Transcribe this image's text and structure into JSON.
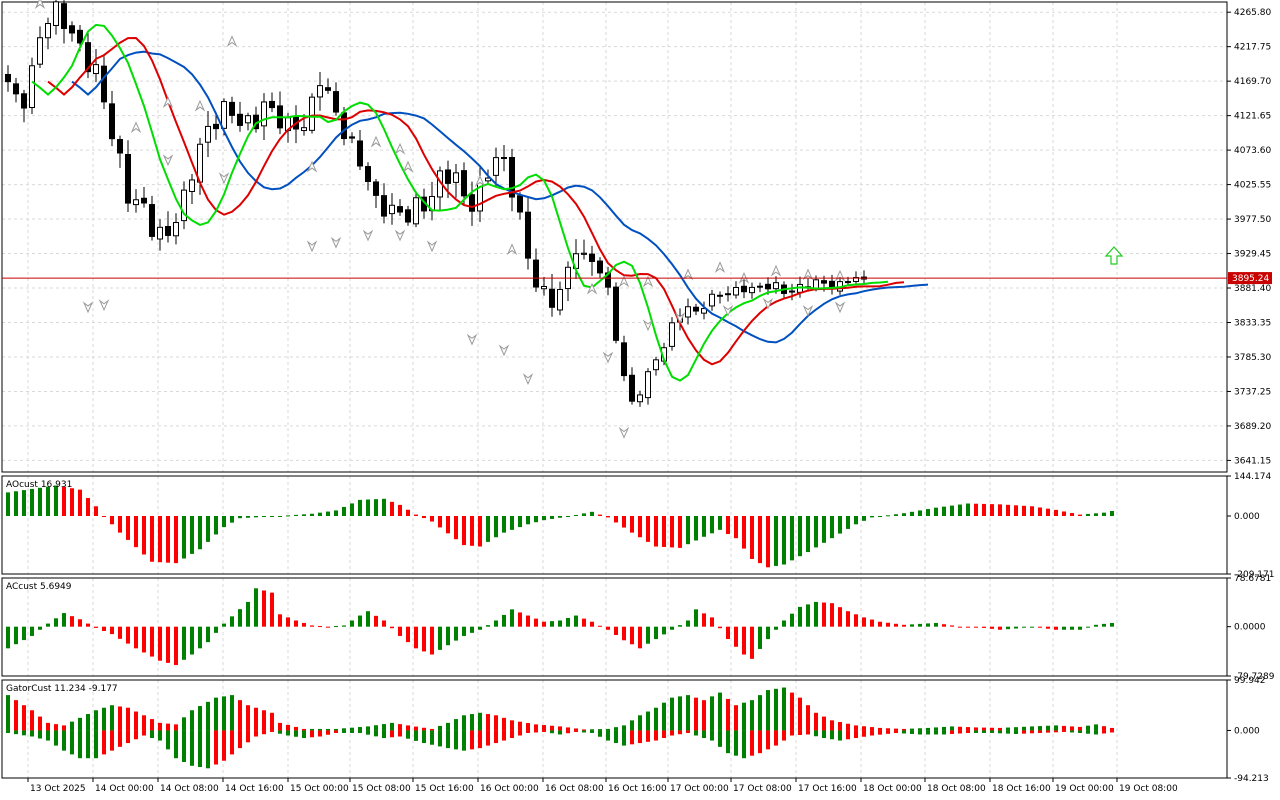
{
  "colors": {
    "background": "#ffffff",
    "grid": "#d9d9d9",
    "frame": "#000000",
    "up_histogram": "#008000",
    "down_histogram": "#ff0000",
    "alligator_lips": "#00dd00",
    "alligator_teeth": "#dd0000",
    "alligator_jaw": "#0050c0",
    "price_line": "#c80000",
    "signal_arrow": "#22cc22",
    "fractal": "#9a9a9a"
  },
  "chart_data": [
    {
      "type": "candlestick",
      "panel": "main",
      "ylim": [
        3625,
        4280
      ],
      "y_ticks": [
        "4265.80",
        "4217.75",
        "4169.70",
        "4121.65",
        "4073.60",
        "4025.55",
        "3977.50",
        "3929.45",
        "3881.40",
        "3833.35",
        "3785.30",
        "3737.25",
        "3689.20",
        "3641.15"
      ],
      "current_price": "3895.24",
      "x_ticks": [
        "13 Oct 2025",
        "14 Oct 00:00",
        "14 Oct 08:00",
        "14 Oct 16:00",
        "15 Oct 00:00",
        "15 Oct 08:00",
        "15 Oct 16:00",
        "16 Oct 00:00",
        "16 Oct 08:00",
        "16 Oct 16:00",
        "17 Oct 00:00",
        "17 Oct 08:00",
        "17 Oct 16:00",
        "18 Oct 00:00",
        "18 Oct 08:00",
        "18 Oct 16:00",
        "19 Oct 00:00",
        "19 Oct 08:00"
      ],
      "close_path": [
        4160,
        4130,
        4180,
        4240,
        4260,
        4255,
        4240,
        4200,
        4170,
        4120,
        4070,
        4000,
        3990,
        3965,
        3960,
        3975,
        4000,
        4070,
        4110,
        4125,
        4120,
        4110,
        4120,
        4135,
        4115,
        4105,
        4120,
        4110,
        4170,
        4140,
        4120,
        4075,
        4040,
        4000,
        4005,
        3985,
        3975,
        3995,
        4015,
        4040,
        4030,
        4010,
        4005,
        4040,
        4055,
        4045,
        3990,
        3910,
        3860,
        3865,
        3895,
        3935,
        3920,
        3915,
        3880,
        3785,
        3715,
        3740,
        3780,
        3800,
        3835,
        3855,
        3850,
        3865,
        3870,
        3875,
        3885,
        3880,
        3880,
        3885,
        3878,
        3880,
        3885,
        3890,
        3888,
        3886,
        3895,
        3890
      ],
      "fractals_up": [
        [
          4,
          4278
        ],
        [
          16,
          4105
        ],
        [
          20,
          4140
        ],
        [
          24,
          4135
        ],
        [
          28,
          4225
        ],
        [
          38,
          4050
        ],
        [
          46,
          4085
        ],
        [
          49,
          4075
        ],
        [
          50,
          4050
        ],
        [
          59,
          4030
        ],
        [
          63,
          3935
        ],
        [
          73,
          3880
        ],
        [
          77,
          3890
        ],
        [
          80,
          3890
        ],
        [
          85,
          3900
        ],
        [
          89,
          3910
        ],
        [
          92,
          3895
        ],
        [
          96,
          3905
        ],
        [
          100,
          3900
        ],
        [
          104,
          3898
        ]
      ],
      "fractals_down": [
        [
          10,
          3855
        ],
        [
          12,
          3858
        ],
        [
          20,
          4060
        ],
        [
          27,
          4035
        ],
        [
          38,
          3940
        ],
        [
          41,
          3945
        ],
        [
          45,
          3955
        ],
        [
          49,
          3955
        ],
        [
          53,
          3940
        ],
        [
          58,
          3810
        ],
        [
          62,
          3795
        ],
        [
          65,
          3755
        ],
        [
          75,
          3785
        ],
        [
          77,
          3680
        ],
        [
          80,
          3830
        ],
        [
          84,
          3840
        ],
        [
          90,
          3850
        ],
        [
          95,
          3860
        ],
        [
          100,
          3850
        ],
        [
          104,
          3855
        ]
      ],
      "signal_arrow": "buy"
    },
    {
      "type": "histogram",
      "panel": "AOcust",
      "label": "AOcust 16.931",
      "ylim": [
        -209.171,
        144.174
      ],
      "y_ticks": [
        "144.174",
        "0.000",
        "-209.171"
      ],
      "path": [
        [
          0,
          85
        ],
        [
          6,
          110
        ],
        [
          9,
          95
        ],
        [
          11,
          35
        ],
        [
          12,
          0
        ],
        [
          14,
          -60
        ],
        [
          18,
          -165
        ],
        [
          21,
          -170
        ],
        [
          24,
          -120
        ],
        [
          27,
          -40
        ],
        [
          29,
          -8
        ],
        [
          34,
          0
        ],
        [
          38,
          8
        ],
        [
          41,
          20
        ],
        [
          44,
          58
        ],
        [
          47,
          62
        ],
        [
          49,
          40
        ],
        [
          51,
          5
        ],
        [
          53,
          -20
        ],
        [
          57,
          -105
        ],
        [
          59,
          -110
        ],
        [
          62,
          -60
        ],
        [
          65,
          -30
        ],
        [
          67,
          -15
        ],
        [
          70,
          -2
        ],
        [
          73,
          15
        ],
        [
          75,
          -5
        ],
        [
          78,
          -60
        ],
        [
          81,
          -110
        ],
        [
          84,
          -115
        ],
        [
          87,
          -75
        ],
        [
          89,
          -50
        ],
        [
          91,
          -80
        ],
        [
          93,
          -155
        ],
        [
          95,
          -185
        ],
        [
          97,
          -175
        ],
        [
          100,
          -130
        ],
        [
          103,
          -80
        ],
        [
          106,
          -30
        ],
        [
          108,
          -5
        ],
        [
          112,
          10
        ],
        [
          116,
          30
        ],
        [
          120,
          45
        ],
        [
          124,
          42
        ],
        [
          128,
          35
        ],
        [
          131,
          22
        ],
        [
          134,
          5
        ],
        [
          137,
          12
        ],
        [
          138,
          18
        ]
      ]
    },
    {
      "type": "histogram",
      "panel": "ACcust",
      "label": "ACcust 5.6949",
      "ylim": [
        -79.7289,
        78.6781
      ],
      "y_ticks": [
        "78.6781",
        "0.0000",
        "-79.7289"
      ],
      "path": [
        [
          0,
          -35
        ],
        [
          3,
          -15
        ],
        [
          5,
          5
        ],
        [
          7,
          22
        ],
        [
          9,
          12
        ],
        [
          11,
          -2
        ],
        [
          13,
          -12
        ],
        [
          16,
          -35
        ],
        [
          19,
          -55
        ],
        [
          21,
          -62
        ],
        [
          23,
          -45
        ],
        [
          25,
          -25
        ],
        [
          27,
          5
        ],
        [
          30,
          40
        ],
        [
          31,
          62
        ],
        [
          33,
          55
        ],
        [
          34,
          20
        ],
        [
          36,
          10
        ],
        [
          38,
          2
        ],
        [
          40,
          0
        ],
        [
          42,
          2
        ],
        [
          44,
          18
        ],
        [
          45,
          25
        ],
        [
          47,
          10
        ],
        [
          49,
          -15
        ],
        [
          51,
          -35
        ],
        [
          53,
          -45
        ],
        [
          55,
          -30
        ],
        [
          57,
          -15
        ],
        [
          59,
          -5
        ],
        [
          61,
          10
        ],
        [
          63,
          28
        ],
        [
          65,
          18
        ],
        [
          67,
          8
        ],
        [
          69,
          10
        ],
        [
          71,
          18
        ],
        [
          73,
          8
        ],
        [
          75,
          -5
        ],
        [
          77,
          -22
        ],
        [
          79,
          -35
        ],
        [
          81,
          -20
        ],
        [
          83,
          -5
        ],
        [
          85,
          10
        ],
        [
          86,
          28
        ],
        [
          88,
          15
        ],
        [
          90,
          -20
        ],
        [
          92,
          -45
        ],
        [
          93,
          -52
        ],
        [
          95,
          -20
        ],
        [
          97,
          10
        ],
        [
          99,
          32
        ],
        [
          101,
          40
        ],
        [
          103,
          38
        ],
        [
          105,
          25
        ],
        [
          107,
          15
        ],
        [
          109,
          8
        ],
        [
          112,
          3
        ],
        [
          116,
          6
        ],
        [
          119,
          0
        ],
        [
          122,
          -2
        ],
        [
          124,
          -5
        ],
        [
          126,
          -3
        ],
        [
          128,
          0
        ],
        [
          131,
          -5
        ],
        [
          134,
          -5
        ],
        [
          136,
          3
        ],
        [
          138,
          6
        ]
      ]
    },
    {
      "type": "histogram",
      "panel": "GatorCust",
      "label": "GatorCust 11.234 -9.177",
      "ylim": [
        -94.213,
        99.942
      ],
      "y_ticks": [
        "99.942",
        "0.000",
        "-94.213"
      ],
      "upper_path": [
        [
          0,
          70
        ],
        [
          3,
          40
        ],
        [
          5,
          15
        ],
        [
          7,
          10
        ],
        [
          9,
          25
        ],
        [
          11,
          40
        ],
        [
          13,
          50
        ],
        [
          15,
          45
        ],
        [
          17,
          30
        ],
        [
          19,
          15
        ],
        [
          21,
          12
        ],
        [
          23,
          40
        ],
        [
          26,
          65
        ],
        [
          28,
          70
        ],
        [
          30,
          50
        ],
        [
          33,
          35
        ],
        [
          34,
          15
        ],
        [
          37,
          3
        ],
        [
          41,
          3
        ],
        [
          45,
          8
        ],
        [
          48,
          15
        ],
        [
          50,
          10
        ],
        [
          53,
          3
        ],
        [
          55,
          15
        ],
        [
          57,
          30
        ],
        [
          59,
          35
        ],
        [
          61,
          30
        ],
        [
          63,
          20
        ],
        [
          66,
          12
        ],
        [
          69,
          8
        ],
        [
          72,
          2
        ],
        [
          75,
          3
        ],
        [
          77,
          10
        ],
        [
          79,
          30
        ],
        [
          81,
          45
        ],
        [
          83,
          65
        ],
        [
          85,
          70
        ],
        [
          87,
          60
        ],
        [
          89,
          75
        ],
        [
          91,
          50
        ],
        [
          93,
          60
        ],
        [
          95,
          80
        ],
        [
          97,
          85
        ],
        [
          99,
          65
        ],
        [
          101,
          35
        ],
        [
          103,
          20
        ],
        [
          106,
          10
        ],
        [
          109,
          5
        ],
        [
          112,
          3
        ],
        [
          115,
          5
        ],
        [
          118,
          8
        ],
        [
          121,
          6
        ],
        [
          124,
          5
        ],
        [
          128,
          8
        ],
        [
          131,
          10
        ],
        [
          134,
          7
        ],
        [
          136,
          12
        ],
        [
          138,
          5
        ]
      ],
      "lower_path": [
        [
          0,
          -5
        ],
        [
          3,
          -12
        ],
        [
          5,
          -20
        ],
        [
          7,
          -40
        ],
        [
          9,
          -55
        ],
        [
          11,
          -55
        ],
        [
          13,
          -40
        ],
        [
          15,
          -25
        ],
        [
          17,
          -10
        ],
        [
          19,
          -20
        ],
        [
          21,
          -55
        ],
        [
          23,
          -70
        ],
        [
          25,
          -75
        ],
        [
          27,
          -60
        ],
        [
          29,
          -35
        ],
        [
          31,
          -12
        ],
        [
          33,
          -3
        ],
        [
          35,
          -10
        ],
        [
          37,
          -15
        ],
        [
          39,
          -12
        ],
        [
          41,
          -5
        ],
        [
          44,
          -5
        ],
        [
          47,
          -15
        ],
        [
          49,
          -12
        ],
        [
          52,
          -25
        ],
        [
          55,
          -35
        ],
        [
          57,
          -40
        ],
        [
          59,
          -35
        ],
        [
          61,
          -25
        ],
        [
          63,
          -15
        ],
        [
          65,
          -5
        ],
        [
          67,
          -3
        ],
        [
          69,
          -8
        ],
        [
          71,
          -3
        ],
        [
          73,
          -5
        ],
        [
          75,
          -20
        ],
        [
          77,
          -30
        ],
        [
          79,
          -25
        ],
        [
          81,
          -20
        ],
        [
          83,
          -10
        ],
        [
          85,
          -5
        ],
        [
          88,
          -20
        ],
        [
          90,
          -45
        ],
        [
          92,
          -55
        ],
        [
          94,
          -45
        ],
        [
          96,
          -30
        ],
        [
          98,
          -10
        ],
        [
          100,
          -8
        ],
        [
          102,
          -15
        ],
        [
          104,
          -20
        ],
        [
          106,
          -15
        ],
        [
          108,
          -10
        ],
        [
          111,
          -5
        ],
        [
          114,
          -8
        ],
        [
          117,
          -8
        ],
        [
          120,
          -5
        ],
        [
          123,
          -5
        ],
        [
          126,
          -7
        ],
        [
          129,
          -5
        ],
        [
          132,
          -3
        ],
        [
          134,
          -5
        ],
        [
          136,
          -8
        ],
        [
          138,
          -4
        ]
      ]
    }
  ]
}
